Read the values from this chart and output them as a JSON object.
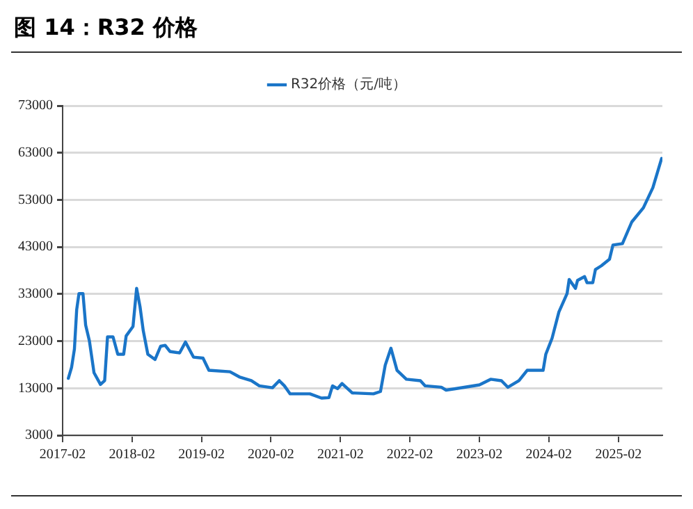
{
  "chart_data": {
    "type": "line",
    "title": "图 14：R32 价格",
    "legend": "top",
    "grid": "y",
    "marker": "none",
    "line_style": "solid",
    "xlim": [
      "2017-02-01",
      "2025-09-20"
    ],
    "xticks": [
      "2017-02",
      "2018-02",
      "2019-02",
      "2020-02",
      "2021-02",
      "2022-02",
      "2023-02",
      "2024-02",
      "2025-02"
    ],
    "ylim": [
      3000,
      73000
    ],
    "yticks": [
      3000,
      13000,
      23000,
      33000,
      43000,
      53000,
      63000,
      73000
    ],
    "series": [
      {
        "name": "R32价格（元/吨）",
        "color": "#1a75c8",
        "x": [
          "2017-03-03",
          "2017-03-20",
          "2017-04-04",
          "2017-04-16",
          "2017-04-28",
          "2017-05-19",
          "2017-06-02",
          "2017-06-22",
          "2017-07-16",
          "2017-08-19",
          "2017-09-10",
          "2017-09-25",
          "2017-10-24",
          "2017-11-18",
          "2017-12-19",
          "2018-01-01",
          "2018-02-06",
          "2018-02-25",
          "2018-03-15",
          "2018-04-01",
          "2018-04-25",
          "2018-06-02",
          "2018-07-01",
          "2018-07-25",
          "2018-08-19",
          "2018-10-09",
          "2018-11-09",
          "2018-12-21",
          "2019-02-09",
          "2019-03-12",
          "2019-07-01",
          "2019-08-19",
          "2019-10-21",
          "2019-12-02",
          "2020-02-09",
          "2020-03-16",
          "2020-04-12",
          "2020-05-12",
          "2020-08-24",
          "2020-10-24",
          "2020-12-02",
          "2020-12-21",
          "2021-01-16",
          "2021-02-09",
          "2021-04-04",
          "2021-07-24",
          "2021-08-30",
          "2021-09-24",
          "2021-10-24",
          "2021-11-25",
          "2022-01-13",
          "2022-03-28",
          "2022-04-22",
          "2022-07-16",
          "2022-08-10",
          "2022-09-28",
          "2023-02-01",
          "2023-04-01",
          "2023-05-28",
          "2023-07-01",
          "2023-08-28",
          "2023-10-10",
          "2024-01-02",
          "2024-01-16",
          "2024-02-18",
          "2024-03-25",
          "2024-05-07",
          "2024-05-18",
          "2024-06-20",
          "2024-07-01",
          "2024-08-07",
          "2024-08-20",
          "2024-09-19",
          "2024-10-03",
          "2024-11-03",
          "2024-12-16",
          "2025-01-03",
          "2025-02-22",
          "2025-04-12",
          "2025-06-12",
          "2025-08-01",
          "2025-09-16"
        ],
        "values": [
          15100,
          17400,
          21300,
          29700,
          33100,
          33100,
          26400,
          23000,
          16300,
          13800,
          14600,
          23900,
          23900,
          20200,
          20200,
          24100,
          26100,
          34200,
          30300,
          25200,
          20200,
          19100,
          21900,
          22100,
          20800,
          20500,
          22800,
          19600,
          19400,
          16800,
          16500,
          15400,
          14600,
          13500,
          13100,
          14600,
          13500,
          11800,
          11800,
          10900,
          11000,
          13500,
          12900,
          14000,
          12000,
          11800,
          12300,
          17900,
          21500,
          16800,
          14900,
          14600,
          13500,
          13200,
          12600,
          12900,
          13700,
          14900,
          14600,
          13200,
          14600,
          16800,
          16800,
          20200,
          23600,
          29200,
          33100,
          36100,
          34200,
          35900,
          36700,
          35400,
          35400,
          38200,
          39000,
          40400,
          43400,
          43700,
          48300,
          51300,
          55600,
          61800
        ]
      }
    ]
  }
}
